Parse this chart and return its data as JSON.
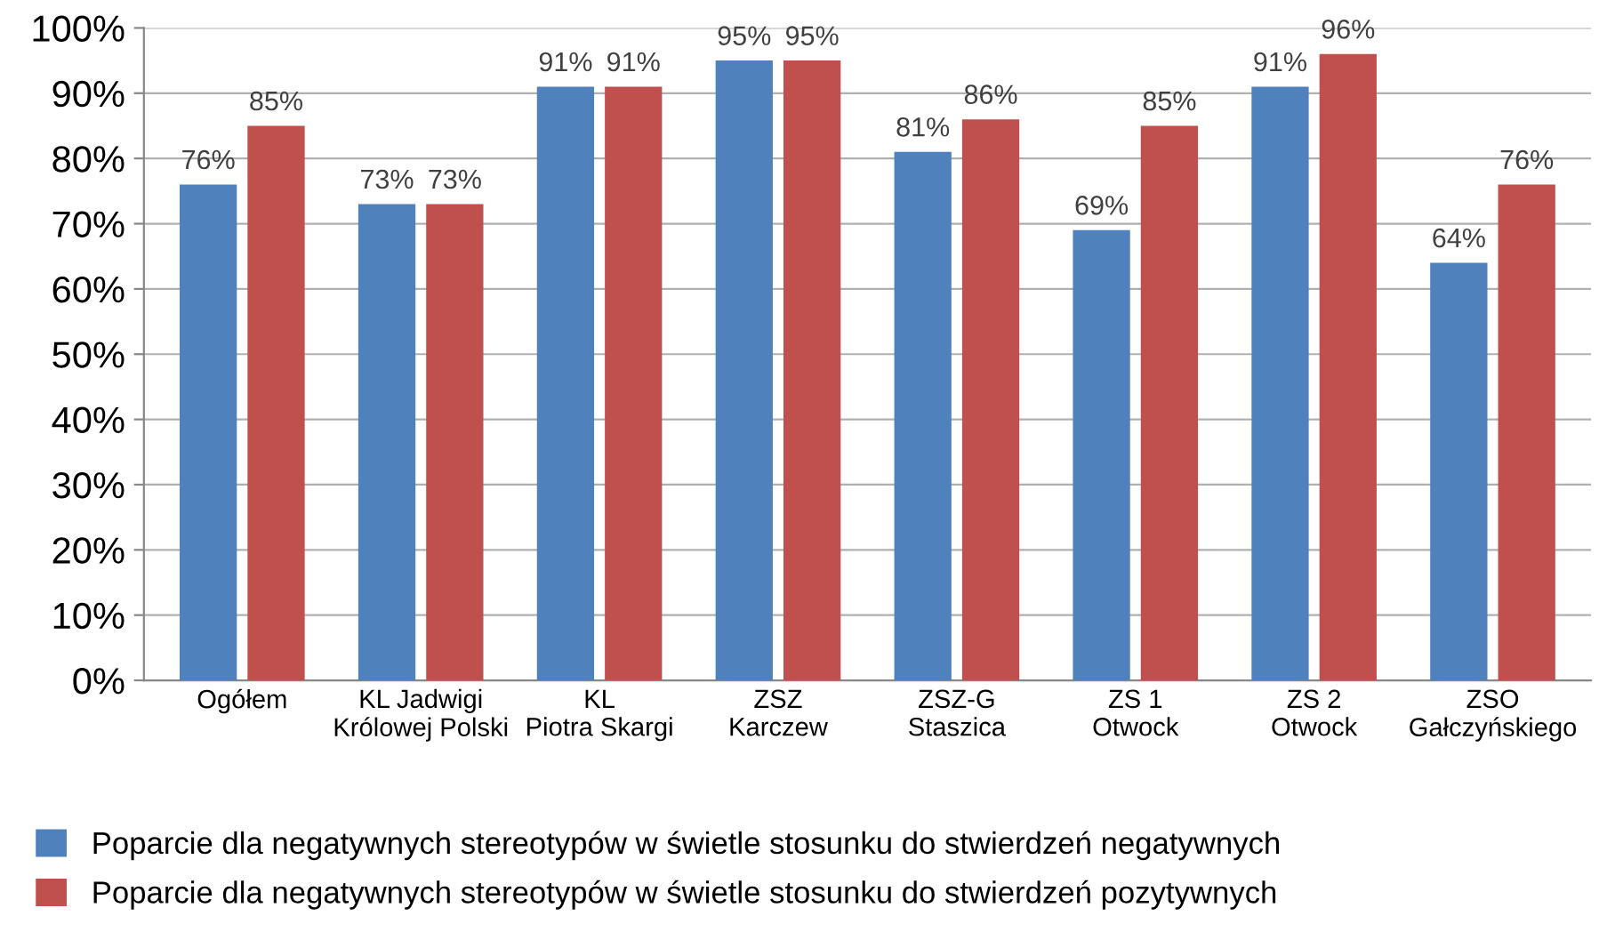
{
  "chart_data": {
    "type": "bar",
    "categories": [
      "Ogółem",
      "KL Jadwigi\nKrólowej Polski",
      "KL\nPiotra Skargi",
      "ZSZ\nKarczew",
      "ZSZ-G\nStaszica",
      "ZS 1\nOtwock",
      "ZS 2\nOtwock",
      "ZSO\nGałczyńskiego"
    ],
    "series": [
      {
        "name": "Poparcie dla negatywnych stereotypów w świetle stosunku do stwierdzeń negatywnych",
        "color": "#4f81bd",
        "values": [
          76,
          73,
          91,
          95,
          81,
          69,
          91,
          64
        ],
        "value_labels": [
          "76%",
          "73%",
          "91%",
          "95%",
          "81%",
          "69%",
          "91%",
          "64%"
        ]
      },
      {
        "name": "Poparcie dla negatywnych stereotypów w świetle stosunku do stwierdzeń pozytywnych",
        "color": "#c0504d",
        "values": [
          85,
          73,
          91,
          95,
          86,
          85,
          96,
          76
        ],
        "value_labels": [
          "85%",
          "73%",
          "91%",
          "95%",
          "86%",
          "85%",
          "96%",
          "76%"
        ]
      }
    ],
    "ylim": [
      0,
      100
    ],
    "yticks": [
      {
        "value": 0,
        "label": "0%"
      },
      {
        "value": 10,
        "label": "10%"
      },
      {
        "value": 20,
        "label": "20%"
      },
      {
        "value": 30,
        "label": "30%"
      },
      {
        "value": 40,
        "label": "40%"
      },
      {
        "value": 50,
        "label": "50%"
      },
      {
        "value": 60,
        "label": "60%"
      },
      {
        "value": 70,
        "label": "70%"
      },
      {
        "value": 80,
        "label": "80%"
      },
      {
        "value": 90,
        "label": "90%"
      },
      {
        "value": 100,
        "label": "100%"
      }
    ],
    "grid": "y",
    "legend": "bottom"
  }
}
